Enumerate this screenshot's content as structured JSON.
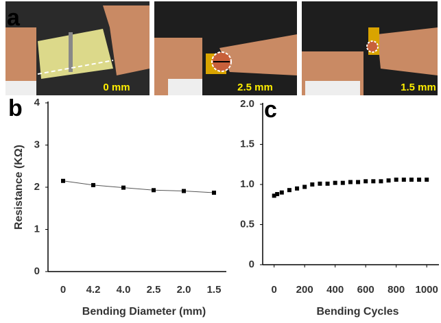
{
  "figure_panel": {
    "label": "a",
    "photos": [
      {
        "label": "0 mm"
      },
      {
        "label": "2.5 mm"
      },
      {
        "label": "1.5 mm"
      }
    ]
  },
  "chart_data": [
    {
      "type": "line",
      "panel_label": "b",
      "xlabel": "Bending Diameter (mm)",
      "ylabel": "Resistance (KΩ)",
      "categories": [
        "0",
        "4.2",
        "4.0",
        "2.5",
        "2.0",
        "1.5"
      ],
      "values": [
        2.15,
        2.05,
        1.99,
        1.93,
        1.91,
        1.87
      ],
      "color": "#000000",
      "ylim": [
        0,
        4
      ],
      "yticks": [
        0,
        1,
        2,
        3,
        4
      ]
    },
    {
      "type": "scatter",
      "panel_label": "c",
      "xlabel": "Bending Cycles",
      "x": [
        0,
        20,
        50,
        100,
        150,
        200,
        250,
        300,
        350,
        400,
        450,
        500,
        550,
        600,
        650,
        700,
        750,
        800,
        850,
        900,
        950,
        1000
      ],
      "values": [
        0.86,
        0.88,
        0.9,
        0.93,
        0.95,
        0.97,
        1.0,
        1.01,
        1.01,
        1.02,
        1.02,
        1.03,
        1.03,
        1.04,
        1.04,
        1.04,
        1.05,
        1.06,
        1.06,
        1.06,
        1.06,
        1.06
      ],
      "color": "#000000",
      "xlim": [
        -75,
        1080
      ],
      "xticks": [
        0,
        200,
        400,
        600,
        800,
        1000
      ],
      "ylim": [
        0,
        2
      ],
      "yticks": [
        0,
        0.5,
        {
          "value": 1,
          "label": "1.0"
        },
        1.5,
        {
          "value": 2,
          "label": "2.0"
        }
      ]
    }
  ]
}
